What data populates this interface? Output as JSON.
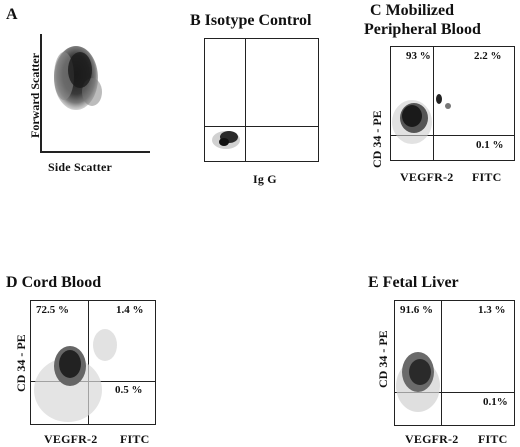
{
  "panels": {
    "a": {
      "letter": "A",
      "y_label": "Forward Scatter",
      "x_label": "Side Scatter"
    },
    "b": {
      "letter": "B",
      "title": "Isotype Control",
      "x_label": "Ig G"
    },
    "c": {
      "letter": "C",
      "title_line1": "Mobilized",
      "title_line2": "Peripheral Blood",
      "y_label": "CD 34 - PE",
      "x_label_left": "VEGFR-2",
      "x_label_right": "FITC",
      "quadrants": {
        "upper_left": "93 %",
        "upper_right": "2.2 %",
        "lower_right": "0.1 %"
      }
    },
    "d": {
      "letter": "D",
      "title": "Cord Blood",
      "y_label": "CD 34 - PE",
      "x_label_left": "VEGFR-2",
      "x_label_right": "FITC",
      "quadrants": {
        "upper_left": "72.5 %",
        "upper_right": "1.4 %",
        "lower_right": "0.5 %"
      }
    },
    "e": {
      "letter": "E",
      "title": "Fetal Liver",
      "y_label": "CD 34 - PE",
      "x_label_left": "VEGFR-2",
      "x_label_right": "FITC",
      "quadrants": {
        "upper_left": "91.6 %",
        "upper_right": "1.3 %",
        "lower_right": "0.1%"
      }
    }
  }
}
